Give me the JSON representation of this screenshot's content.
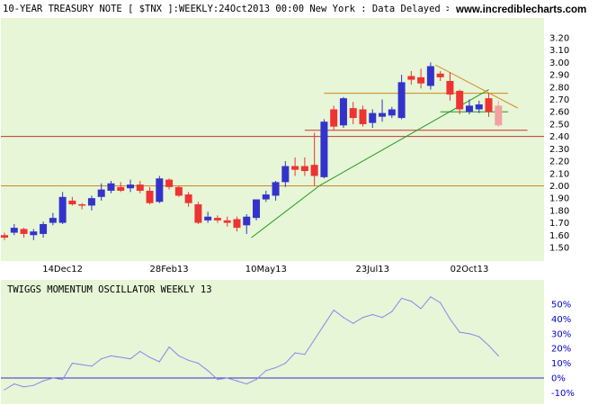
{
  "header": {
    "title": "10-YEAR TREASURY NOTE [ $TNX ]:WEEKLY:24Oct2013 00:00 New York : Data Delayed > 15m...",
    "brand": "www.incrediblecharts.com"
  },
  "colors": {
    "background": "#ffffff",
    "panel_background": "#e6f6d6",
    "up_candle": "#3333cc",
    "down_candle": "#ee3333",
    "pending_candle": "#f4a0a0",
    "support_red": "#cc3333",
    "level_orange": "#cc8822",
    "trend_green": "#229922",
    "trend_orange": "#dd8833",
    "oscillator_line": "#8888ee",
    "zero_line": "#3333cc"
  },
  "chart_data": [
    {
      "type": "candlestick",
      "title": "10-YEAR TREASURY NOTE [ $TNX ]:WEEKLY:24Oct2013 00:00 New York : Data Delayed > 15m...",
      "ylim": [
        1.45,
        3.25
      ],
      "y_scale": "linear",
      "y_ticks": [
        "3.20",
        "3.10",
        "3.00",
        "2.90",
        "2.80",
        "2.70",
        "2.60",
        "2.50",
        "2.40",
        "2.30",
        "2.20",
        "2.10",
        "2.00",
        "1.90",
        "1.80",
        "1.70",
        "1.60",
        "1.50"
      ],
      "x_ticks": [
        {
          "label": "14Dec12",
          "index": 6
        },
        {
          "label": "28Feb13",
          "index": 17
        },
        {
          "label": "10May13",
          "index": 27
        },
        {
          "label": "23Jul13",
          "index": 38
        },
        {
          "label": "02Oct13",
          "index": 48
        }
      ],
      "grid": false,
      "candles": [
        {
          "o": 1.6,
          "h": 1.62,
          "l": 1.56,
          "c": 1.58
        },
        {
          "o": 1.62,
          "h": 1.69,
          "l": 1.6,
          "c": 1.66
        },
        {
          "o": 1.65,
          "h": 1.66,
          "l": 1.58,
          "c": 1.61
        },
        {
          "o": 1.6,
          "h": 1.65,
          "l": 1.56,
          "c": 1.63
        },
        {
          "o": 1.61,
          "h": 1.71,
          "l": 1.58,
          "c": 1.69
        },
        {
          "o": 1.7,
          "h": 1.78,
          "l": 1.68,
          "c": 1.74
        },
        {
          "o": 1.7,
          "h": 1.95,
          "l": 1.69,
          "c": 1.91
        },
        {
          "o": 1.88,
          "h": 1.91,
          "l": 1.84,
          "c": 1.85
        },
        {
          "o": 1.85,
          "h": 1.86,
          "l": 1.81,
          "c": 1.84
        },
        {
          "o": 1.84,
          "h": 1.92,
          "l": 1.8,
          "c": 1.9
        },
        {
          "o": 1.91,
          "h": 2.02,
          "l": 1.88,
          "c": 1.97
        },
        {
          "o": 1.96,
          "h": 2.04,
          "l": 1.94,
          "c": 2.02
        },
        {
          "o": 1.99,
          "h": 2.03,
          "l": 1.95,
          "c": 1.96
        },
        {
          "o": 1.98,
          "h": 2.05,
          "l": 1.95,
          "c": 2.01
        },
        {
          "o": 2.01,
          "h": 2.04,
          "l": 1.94,
          "c": 1.96
        },
        {
          "o": 1.96,
          "h": 1.99,
          "l": 1.85,
          "c": 1.86
        },
        {
          "o": 1.87,
          "h": 2.08,
          "l": 1.86,
          "c": 2.06
        },
        {
          "o": 2.05,
          "h": 2.06,
          "l": 1.97,
          "c": 1.99
        },
        {
          "o": 1.99,
          "h": 2.0,
          "l": 1.91,
          "c": 1.92
        },
        {
          "o": 1.93,
          "h": 1.95,
          "l": 1.83,
          "c": 1.86
        },
        {
          "o": 1.85,
          "h": 1.87,
          "l": 1.69,
          "c": 1.7
        },
        {
          "o": 1.72,
          "h": 1.79,
          "l": 1.7,
          "c": 1.75
        },
        {
          "o": 1.74,
          "h": 1.76,
          "l": 1.7,
          "c": 1.72
        },
        {
          "o": 1.72,
          "h": 1.75,
          "l": 1.67,
          "c": 1.7
        },
        {
          "o": 1.73,
          "h": 1.75,
          "l": 1.63,
          "c": 1.66
        },
        {
          "o": 1.68,
          "h": 1.77,
          "l": 1.61,
          "c": 1.75
        },
        {
          "o": 1.74,
          "h": 1.89,
          "l": 1.72,
          "c": 1.89
        },
        {
          "o": 1.89,
          "h": 1.96,
          "l": 1.87,
          "c": 1.93
        },
        {
          "o": 1.92,
          "h": 2.04,
          "l": 1.88,
          "c": 2.03
        },
        {
          "o": 2.03,
          "h": 2.2,
          "l": 1.99,
          "c": 2.16
        },
        {
          "o": 2.16,
          "h": 2.23,
          "l": 2.08,
          "c": 2.13
        },
        {
          "o": 2.16,
          "h": 2.23,
          "l": 2.08,
          "c": 2.12
        },
        {
          "o": 2.17,
          "h": 2.43,
          "l": 2.0,
          "c": 2.08
        },
        {
          "o": 2.07,
          "h": 2.54,
          "l": 2.06,
          "c": 2.52
        },
        {
          "o": 2.62,
          "h": 2.65,
          "l": 2.45,
          "c": 2.48
        },
        {
          "o": 2.49,
          "h": 2.72,
          "l": 2.47,
          "c": 2.71
        },
        {
          "o": 2.63,
          "h": 2.68,
          "l": 2.5,
          "c": 2.55
        },
        {
          "o": 2.62,
          "h": 2.65,
          "l": 2.48,
          "c": 2.5
        },
        {
          "o": 2.51,
          "h": 2.62,
          "l": 2.47,
          "c": 2.59
        },
        {
          "o": 2.56,
          "h": 2.7,
          "l": 2.52,
          "c": 2.59
        },
        {
          "o": 2.57,
          "h": 2.64,
          "l": 2.55,
          "c": 2.62
        },
        {
          "o": 2.55,
          "h": 2.9,
          "l": 2.54,
          "c": 2.84
        },
        {
          "o": 2.89,
          "h": 2.93,
          "l": 2.82,
          "c": 2.86
        },
        {
          "o": 2.88,
          "h": 2.95,
          "l": 2.79,
          "c": 2.83
        },
        {
          "o": 2.81,
          "h": 3.0,
          "l": 2.78,
          "c": 2.97
        },
        {
          "o": 2.91,
          "h": 2.93,
          "l": 2.85,
          "c": 2.88
        },
        {
          "o": 2.85,
          "h": 2.92,
          "l": 2.69,
          "c": 2.74
        },
        {
          "o": 2.77,
          "h": 2.78,
          "l": 2.58,
          "c": 2.62
        },
        {
          "o": 2.6,
          "h": 2.7,
          "l": 2.58,
          "c": 2.65
        },
        {
          "o": 2.62,
          "h": 2.69,
          "l": 2.59,
          "c": 2.66
        },
        {
          "o": 2.71,
          "h": 2.75,
          "l": 2.56,
          "c": 2.6
        },
        {
          "o": 2.65,
          "h": 2.69,
          "l": 2.48,
          "c": 2.49,
          "pending": true
        }
      ],
      "horizontal_lines": [
        {
          "y": 2.75,
          "x_from": 33,
          "x_to": 52,
          "color": "level_orange"
        },
        {
          "y": 2.6,
          "x_from": 45,
          "x_to": 52,
          "color": "trend_green"
        },
        {
          "y": 2.45,
          "x_from": 31,
          "x_to": 54,
          "color": "support_red"
        },
        {
          "y": 2.4,
          "x_from": -1,
          "x_to": 57,
          "color": "support_red"
        },
        {
          "y": 2.0,
          "x_from": -1,
          "x_to": 57,
          "color": "level_orange"
        }
      ],
      "trend_lines": [
        {
          "x1": 25.5,
          "y1": 1.58,
          "x2": 32.5,
          "y2": 2.0,
          "color": "trend_green"
        },
        {
          "x1": 32.5,
          "y1": 2.0,
          "x2": 50.0,
          "y2": 2.78,
          "color": "trend_green"
        },
        {
          "x1": 44.5,
          "y1": 2.98,
          "x2": 53.0,
          "y2": 2.63,
          "color": "trend_orange"
        }
      ]
    },
    {
      "type": "line",
      "title": "TWIGGS MOMENTUM OSCILLATOR WEEKLY 13",
      "ylim": [
        -12,
        65
      ],
      "y_ticks": [
        "50%",
        "40%",
        "30%",
        "20%",
        "10%",
        "0%",
        "-10%"
      ],
      "zero_line": 0,
      "values": [
        -8,
        -4,
        -6,
        -5,
        -2,
        0,
        -1,
        10,
        9,
        8,
        13,
        15,
        14,
        13,
        18,
        14,
        11,
        21,
        15,
        12,
        10,
        5,
        -1,
        0,
        -2,
        -4,
        -1,
        5,
        7,
        10,
        17,
        16,
        26,
        36,
        46,
        41,
        37,
        41,
        43,
        41,
        45,
        54,
        52,
        47,
        55,
        51,
        40,
        31,
        30,
        28,
        22,
        15
      ]
    }
  ]
}
